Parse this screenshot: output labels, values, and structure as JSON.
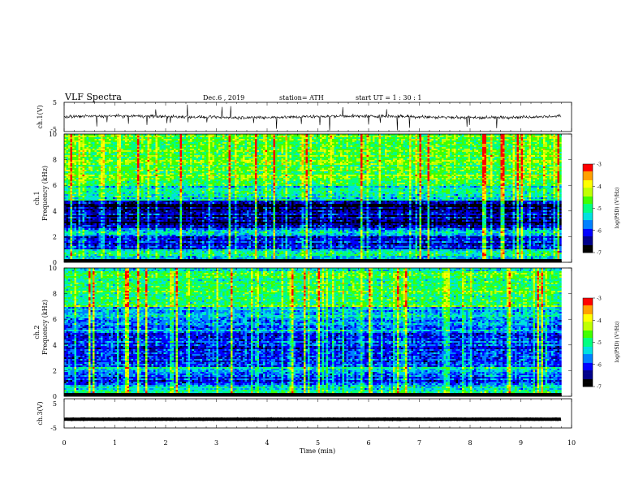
{
  "header": {
    "title": "VLF  Spectra",
    "date": "Dec.6  , 2019",
    "station": "station= ATH",
    "start": "start  UT  =    1  : 30 : 1"
  },
  "chart_data": [
    {
      "type": "line",
      "name": "ch1-waveform",
      "ylabel": "ch.1(V)",
      "ylim": [
        -5,
        5
      ],
      "yticks": [
        "5",
        "-5"
      ],
      "xlim": [
        0,
        10
      ],
      "description": "noisy waveform centred near 0 V with frequent negative spikes, data ends at ~9.8 min"
    },
    {
      "type": "heatmap",
      "name": "ch1-spectrogram",
      "ylabel_line1": "ch.1",
      "ylabel_line2": "Frequency  (kHz)",
      "ylim": [
        0,
        10
      ],
      "yticks": [
        "0",
        "2",
        "4",
        "6",
        "8",
        "10"
      ],
      "xlim": [
        0,
        9.8
      ],
      "colorbar": {
        "label": "log(PSD) (V²/Hz)",
        "range": [
          -7,
          -3
        ],
        "ticks": [
          "-3",
          "-4",
          "-5",
          "-6",
          "-7"
        ]
      },
      "bands": [
        {
          "f": [
            0.0,
            0.25
          ],
          "level": -7.0
        },
        {
          "f": [
            0.25,
            0.6
          ],
          "level": -5.6
        },
        {
          "f": [
            0.6,
            1.0
          ],
          "level": -5.1
        },
        {
          "f": [
            1.0,
            2.2
          ],
          "level": -6.1
        },
        {
          "f": [
            2.2,
            2.6
          ],
          "level": -5.5
        },
        {
          "f": [
            2.6,
            4.8
          ],
          "level": -6.6
        },
        {
          "f": [
            4.8,
            6.0
          ],
          "level": -5.3
        },
        {
          "f": [
            6.0,
            10.0
          ],
          "level": -4.7
        }
      ]
    },
    {
      "type": "heatmap",
      "name": "ch2-spectrogram",
      "ylabel_line1": "ch.2",
      "ylabel_line2": "Frequency  (kHz)",
      "ylim": [
        0,
        10
      ],
      "yticks": [
        "0",
        "2",
        "4",
        "6",
        "8",
        "10"
      ],
      "xlim": [
        0,
        9.8
      ],
      "colorbar": {
        "label": "log(PSD) (V²/Hz)",
        "range": [
          -7,
          -3
        ],
        "ticks": [
          "-3",
          "-4",
          "-5",
          "-6",
          "-7"
        ]
      },
      "bands": [
        {
          "f": [
            0.0,
            0.2
          ],
          "level": -7.0
        },
        {
          "f": [
            0.2,
            0.8
          ],
          "level": -5.2
        },
        {
          "f": [
            0.8,
            1.8
          ],
          "level": -6.0
        },
        {
          "f": [
            1.8,
            2.3
          ],
          "level": -5.4
        },
        {
          "f": [
            2.3,
            5.0
          ],
          "level": -6.0
        },
        {
          "f": [
            5.0,
            7.0
          ],
          "level": -5.6
        },
        {
          "f": [
            7.0,
            10.0
          ],
          "level": -5.0
        }
      ]
    },
    {
      "type": "line",
      "name": "ch3-waveform",
      "ylabel": "ch.3(V)",
      "ylim": [
        -5,
        5
      ],
      "yticks": [
        "5",
        "-5"
      ],
      "xlim": [
        0,
        10
      ],
      "description": "flat thick trace near -2 V, data ends at ~9.8 min"
    }
  ],
  "xaxis": {
    "label": "Time  (min)",
    "ticks": [
      "0",
      "1",
      "2",
      "3",
      "4",
      "5",
      "6",
      "7",
      "8",
      "9",
      "10"
    ],
    "range": [
      0,
      10
    ]
  },
  "colors": {
    "colormap": [
      "#000000",
      "#00008b",
      "#0000ff",
      "#0080ff",
      "#00e0e0",
      "#00ff80",
      "#40ff00",
      "#c0ff00",
      "#ffff00",
      "#ffa000",
      "#ff0000",
      "#ffffff"
    ]
  }
}
